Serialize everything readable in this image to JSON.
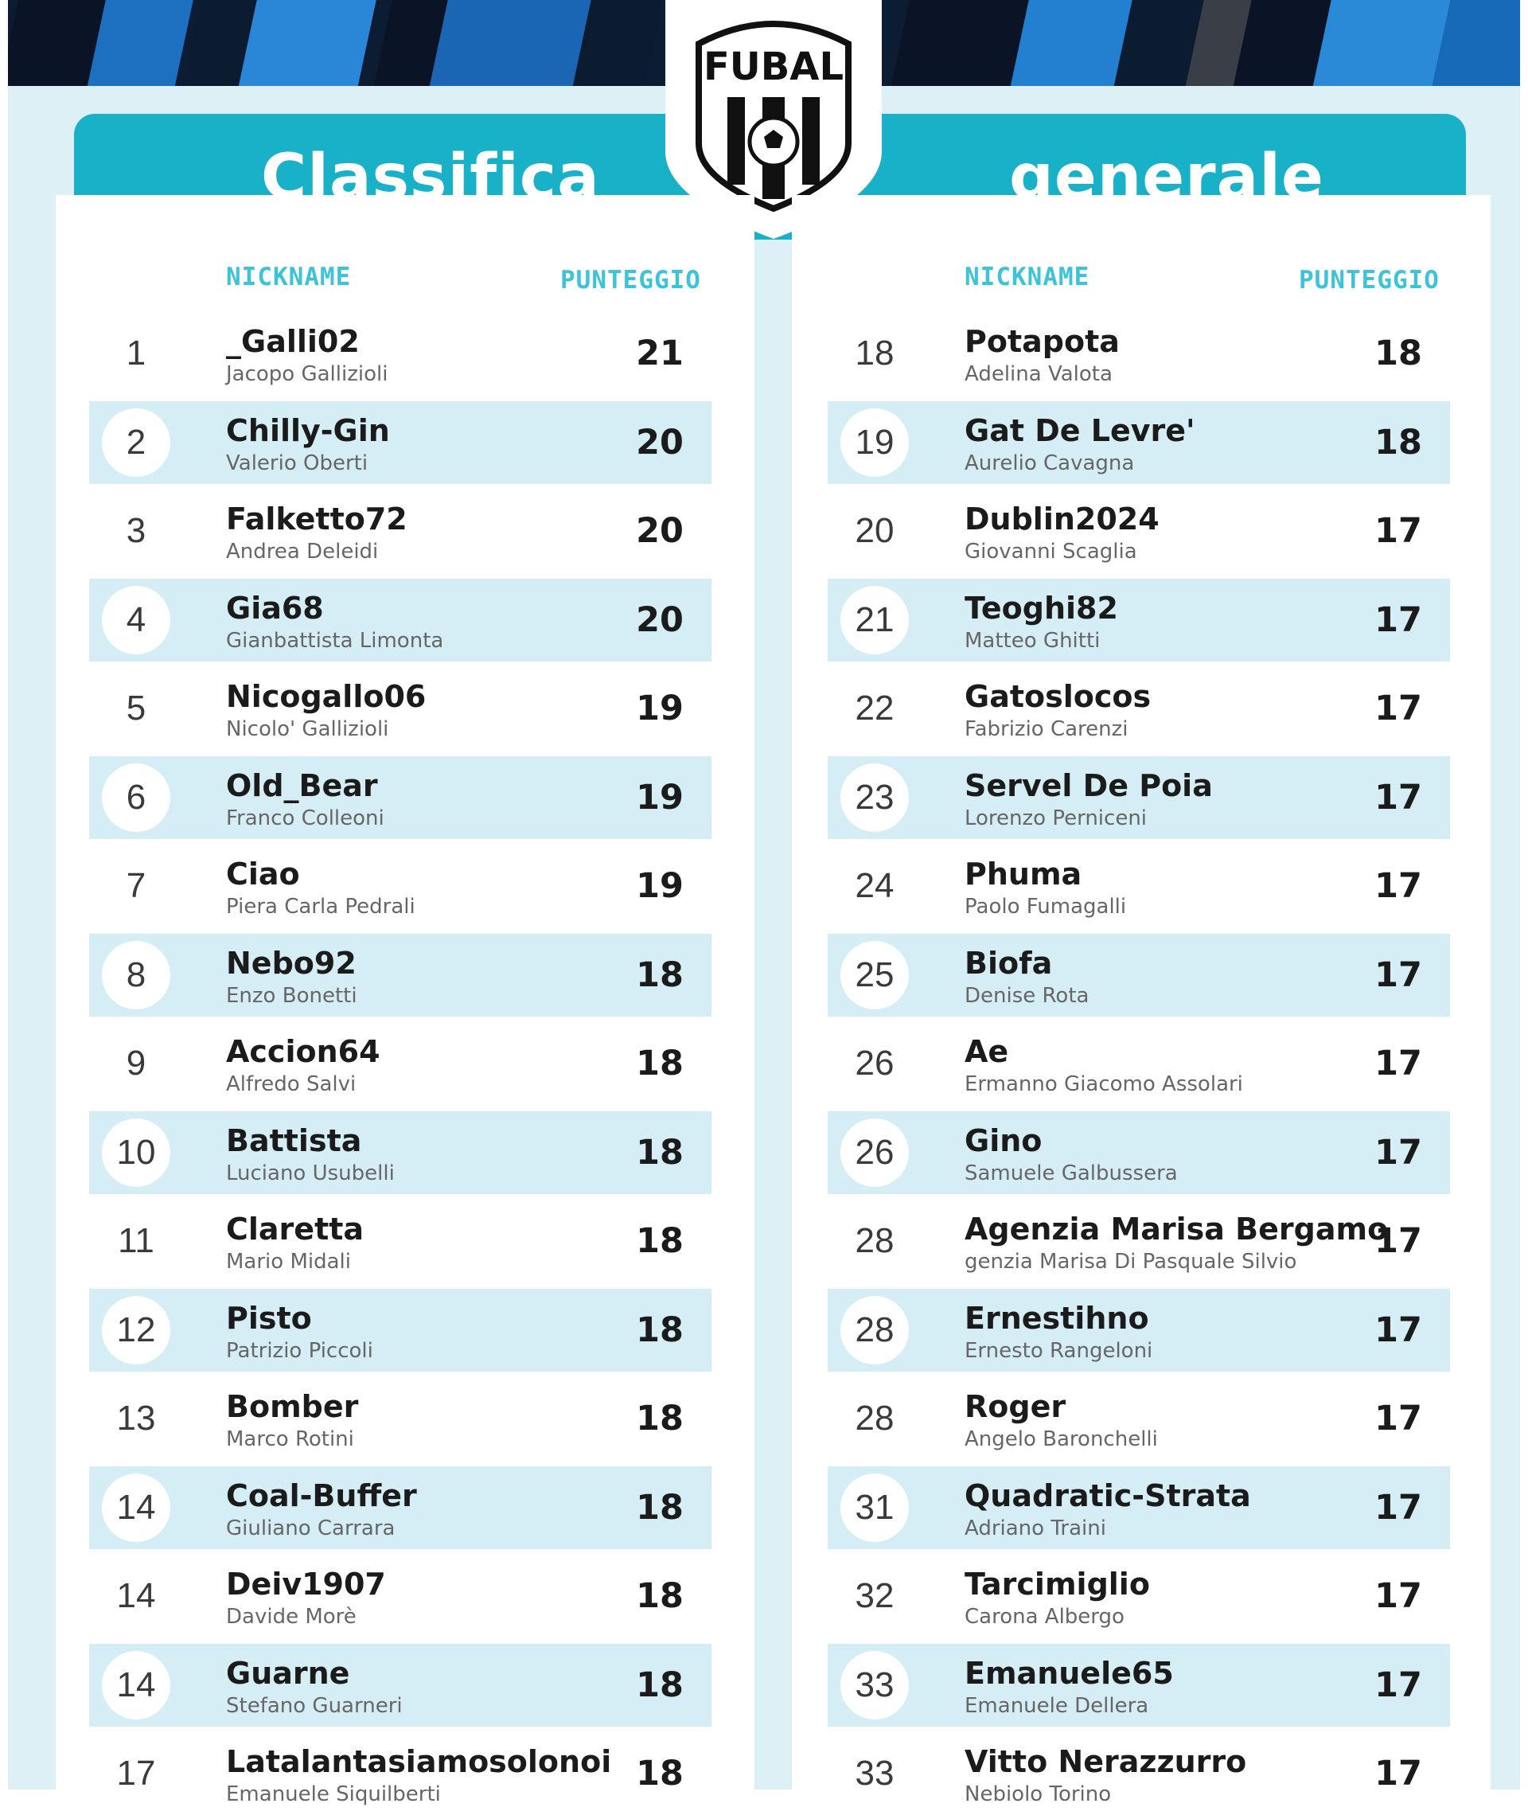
{
  "header": {
    "logo_text": "FUBAL",
    "title_left": "Classifica",
    "title_right": "generale"
  },
  "columns": {
    "nickname_label": "NICKNAME",
    "score_label": "PUNTEGGIO"
  },
  "colors": {
    "accent": "#19b1c7",
    "header_label": "#3cc3d8",
    "page_bg": "#dcf0f6",
    "row_shade": "#d5edf4",
    "banner_dark": "#0c1c33",
    "banner_blue": "#1f7fd0"
  },
  "left_table": [
    {
      "rank": "1",
      "nick": "_Galli02",
      "name": "Jacopo Gallizioli",
      "score": "21"
    },
    {
      "rank": "2",
      "nick": "Chilly-Gin",
      "name": "Valerio Oberti",
      "score": "20"
    },
    {
      "rank": "3",
      "nick": "Falketto72",
      "name": "Andrea Deleidi",
      "score": "20"
    },
    {
      "rank": "4",
      "nick": "Gia68",
      "name": "Gianbattista Limonta",
      "score": "20"
    },
    {
      "rank": "5",
      "nick": "Nicogallo06",
      "name": "Nicolo' Gallizioli",
      "score": "19"
    },
    {
      "rank": "6",
      "nick": "Old_Bear",
      "name": "Franco Colleoni",
      "score": "19"
    },
    {
      "rank": "7",
      "nick": "Ciao",
      "name": "Piera Carla Pedrali",
      "score": "19"
    },
    {
      "rank": "8",
      "nick": "Nebo92",
      "name": "Enzo Bonetti",
      "score": "18"
    },
    {
      "rank": "9",
      "nick": "Accion64",
      "name": "Alfredo Salvi",
      "score": "18"
    },
    {
      "rank": "10",
      "nick": "Battista",
      "name": "Luciano Usubelli",
      "score": "18"
    },
    {
      "rank": "11",
      "nick": "Claretta",
      "name": "Mario Midali",
      "score": "18"
    },
    {
      "rank": "12",
      "nick": "Pisto",
      "name": "Patrizio Piccoli",
      "score": "18"
    },
    {
      "rank": "13",
      "nick": "Bomber",
      "name": "Marco Rotini",
      "score": "18"
    },
    {
      "rank": "14",
      "nick": "Coal-Buffer",
      "name": "Giuliano Carrara",
      "score": "18"
    },
    {
      "rank": "14",
      "nick": "Deiv1907",
      "name": "Davide Morè",
      "score": "18"
    },
    {
      "rank": "14",
      "nick": "Guarne",
      "name": "Stefano Guarneri",
      "score": "18"
    },
    {
      "rank": "17",
      "nick": "Latalantasiamosolonoi",
      "name": "Emanuele Siquilberti",
      "score": "18"
    }
  ],
  "right_table": [
    {
      "rank": "18",
      "nick": "Potapota",
      "name": "Adelina Valota",
      "score": "18"
    },
    {
      "rank": "19",
      "nick": "Gat De Levre'",
      "name": "Aurelio Cavagna",
      "score": "18"
    },
    {
      "rank": "20",
      "nick": "Dublin2024",
      "name": "Giovanni Scaglia",
      "score": "17"
    },
    {
      "rank": "21",
      "nick": "Teoghi82",
      "name": "Matteo Ghitti",
      "score": "17"
    },
    {
      "rank": "22",
      "nick": "Gatoslocos",
      "name": "Fabrizio Carenzi",
      "score": "17"
    },
    {
      "rank": "23",
      "nick": "Servel De Poia",
      "name": "Lorenzo Perniceni",
      "score": "17"
    },
    {
      "rank": "24",
      "nick": "Phuma",
      "name": "Paolo Fumagalli",
      "score": "17"
    },
    {
      "rank": "25",
      "nick": "Biofa",
      "name": "Denise Rota",
      "score": "17"
    },
    {
      "rank": "26",
      "nick": "Ae",
      "name": "Ermanno Giacomo Assolari",
      "score": "17"
    },
    {
      "rank": "26",
      "nick": "Gino",
      "name": " Samuele Galbussera",
      "score": "17"
    },
    {
      "rank": "28",
      "nick": "Agenzia Marisa Bergamo",
      "name": " genzia Marisa Di Pasquale Silvio",
      "score": "17"
    },
    {
      "rank": "28",
      "nick": "Ernestihno",
      "name": "Ernesto Rangeloni",
      "score": "17"
    },
    {
      "rank": "28",
      "nick": "Roger",
      "name": "Angelo Baronchelli",
      "score": "17"
    },
    {
      "rank": "31",
      "nick": "Quadratic-Strata",
      "name": "Adriano Traini",
      "score": "17"
    },
    {
      "rank": "32",
      "nick": "Tarcimiglio",
      "name": "Carona Albergo",
      "score": "17"
    },
    {
      "rank": "33",
      "nick": "Emanuele65",
      "name": "Emanuele Dellera",
      "score": "17"
    },
    {
      "rank": "33",
      "nick": "Vitto Nerazzurro",
      "name": "Nebiolo Torino",
      "score": "17"
    }
  ]
}
